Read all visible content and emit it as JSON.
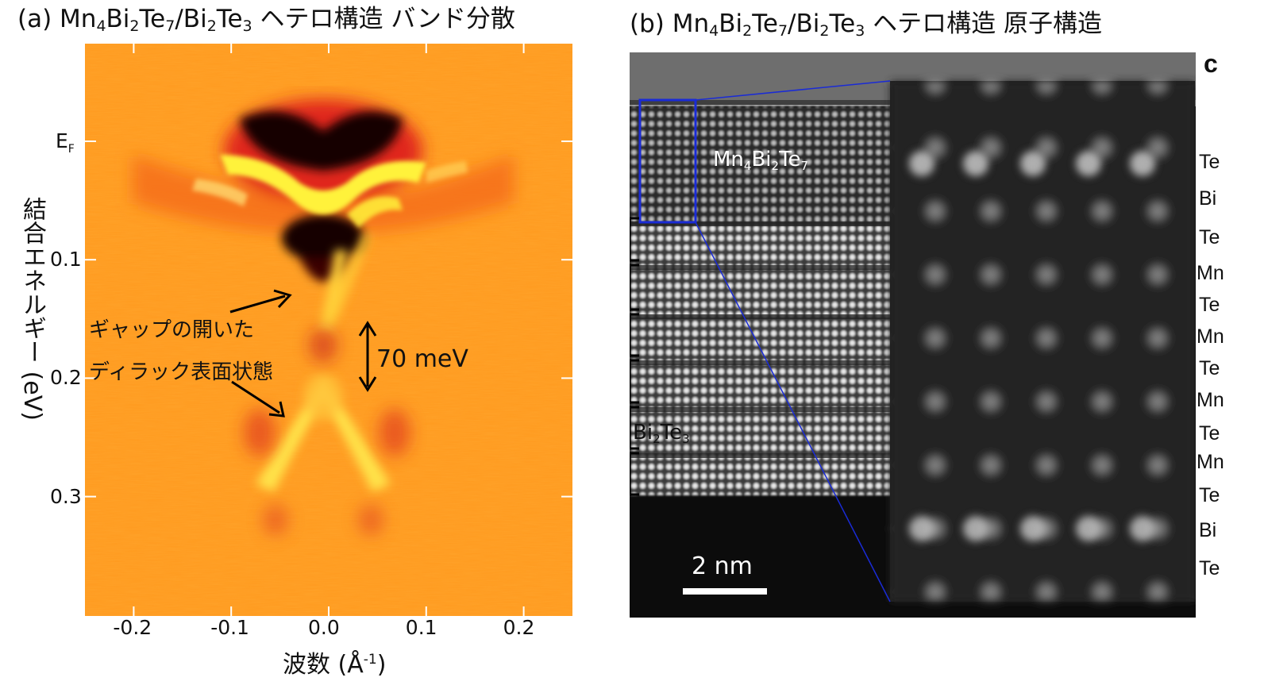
{
  "panel_a": {
    "title_parts": [
      "(a) Mn",
      "4",
      "Bi",
      "2",
      "Te",
      "7",
      "/Bi",
      "2",
      "Te",
      "3",
      " ヘテロ構造 バンド分散"
    ],
    "y_label": "結合エネルギー (eV)",
    "x_label": "波数 (Å",
    "x_label_sup": "-1",
    "x_label_close": ")",
    "ef_label": "E",
    "ef_sub": "F",
    "annotation_line1": "ギャップの開いた",
    "annotation_line2": "ディラック表面状態",
    "gap_label": "70 meV",
    "colors": {
      "background": "#ff9a1f",
      "dark": "#1a0000",
      "red": "#d9201b",
      "yellow": "#fff23a"
    }
  },
  "panel_b": {
    "title_parts": [
      "(b) Mn",
      "4",
      "Bi",
      "2",
      "Te",
      "7",
      "/Bi",
      "2",
      "Te",
      "3",
      " ヘテロ構造 原子構造"
    ],
    "label_mn_parts": [
      "Mn",
      "4",
      "Bi",
      "2",
      "Te",
      "7"
    ],
    "label_bi_parts": [
      "Bi",
      "2",
      "Te",
      "3"
    ],
    "scale_bar_label": "2 nm",
    "corner_label": "c",
    "atom_layers": [
      "Te",
      "Bi",
      "Te",
      "Mn",
      "Te",
      "Mn",
      "Te",
      "Mn",
      "Te",
      "Mn",
      "Te",
      "Bi",
      "Te"
    ],
    "colors": {
      "box": "#1a2bd6",
      "image_bg": "#0c0c0c"
    }
  },
  "chart_data": {
    "type": "heatmap",
    "title": "(a) Mn4Bi2Te7/Bi2Te3 ヘテロ構造 バンド分散",
    "xlabel": "波数 (Å-1)",
    "ylabel": "結合エネルギー (eV)",
    "xlim": [
      -0.25,
      0.25
    ],
    "ylim": [
      0.0,
      0.4
    ],
    "x_ticks": [
      -0.2,
      -0.1,
      0.0,
      0.1,
      0.2
    ],
    "x_tick_labels": [
      "-0.2",
      "-0.1",
      "0.0",
      "0.1",
      "0.2"
    ],
    "y_ticks": [
      0.0,
      0.1,
      0.2,
      0.3
    ],
    "y_tick_labels": [
      "EF",
      "0.1",
      "0.2",
      "0.3"
    ],
    "annotations": [
      {
        "text": "70 meV",
        "energy_range": [
          0.155,
          0.225
        ],
        "k": 0.04
      }
    ]
  }
}
